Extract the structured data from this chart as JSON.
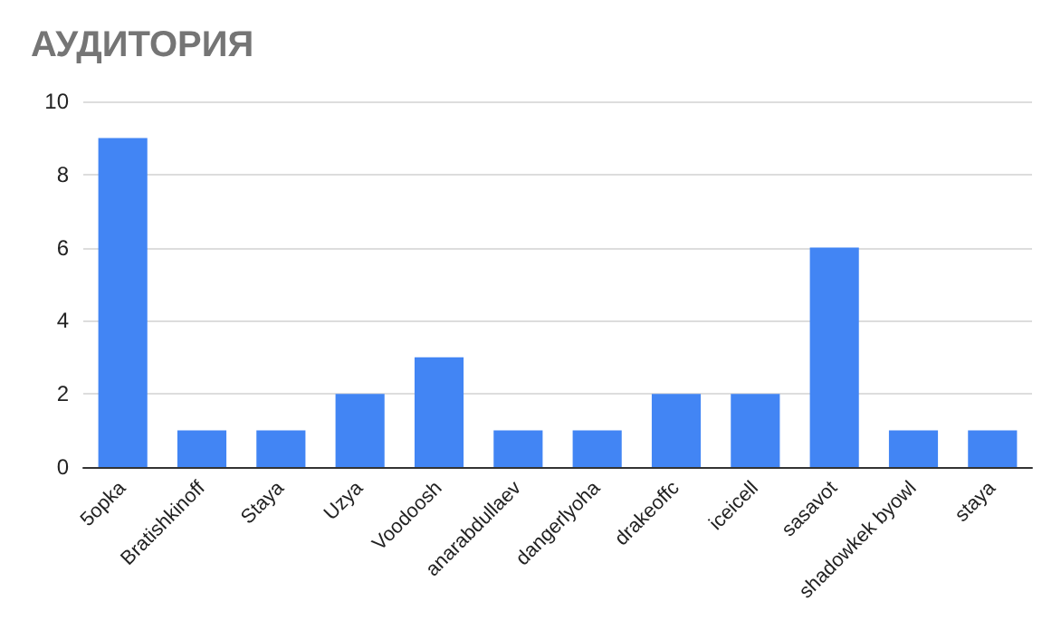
{
  "chart_data": {
    "type": "bar",
    "title": "АУДИТОРИЯ",
    "categories": [
      "5opka",
      "Bratishkinoff",
      "Staya",
      "Uzya",
      "Voodoosh",
      "anarabdullaev",
      "dangerlyoha",
      "drakeoffc",
      "iceicell",
      "sasavot",
      "shadowkek byowl",
      "staya"
    ],
    "values": [
      9,
      1,
      1,
      2,
      3,
      1,
      1,
      2,
      2,
      6,
      1,
      1
    ],
    "color": "#4285f4",
    "ylim": [
      0,
      10
    ],
    "yticks": [
      0,
      2,
      4,
      6,
      8,
      10
    ],
    "grid": "y"
  }
}
